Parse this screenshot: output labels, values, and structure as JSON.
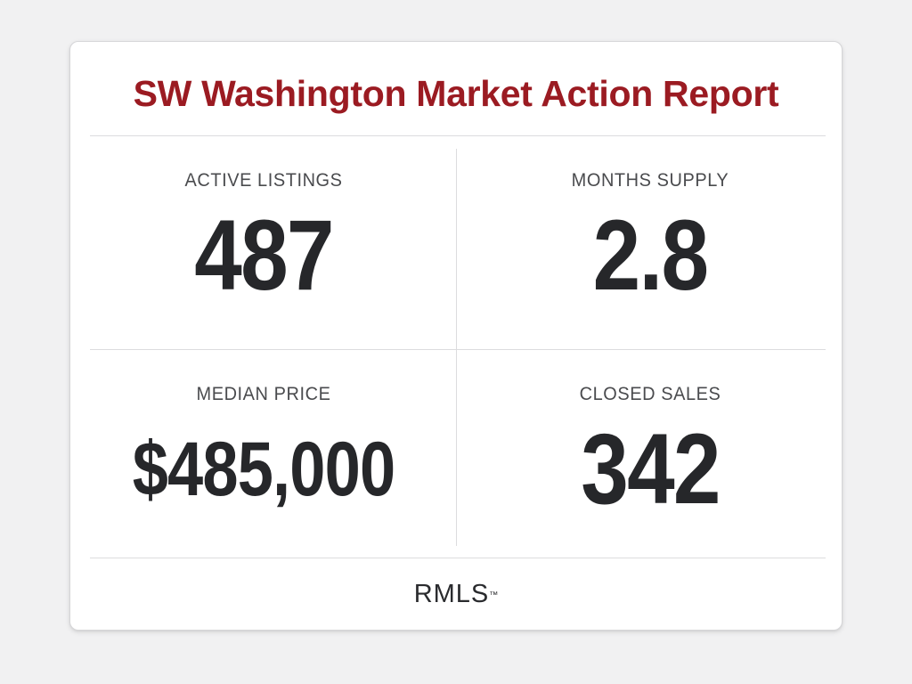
{
  "report": {
    "title": "SW Washington Market Action Report"
  },
  "metrics": [
    {
      "label": "ACTIVE LISTINGS",
      "value": "487"
    },
    {
      "label": "MONTHS SUPPLY",
      "value": "2.8"
    },
    {
      "label": "MEDIAN PRICE",
      "value": "$485,000"
    },
    {
      "label": "CLOSED SALES",
      "value": "342"
    }
  ],
  "footer": {
    "logo_text": "RMLS",
    "trademark": "™"
  },
  "colors": {
    "title": "#9b1b22",
    "value": "#26272a",
    "label": "#4a4b4e",
    "background": "#f1f1f2",
    "card": "#ffffff"
  }
}
